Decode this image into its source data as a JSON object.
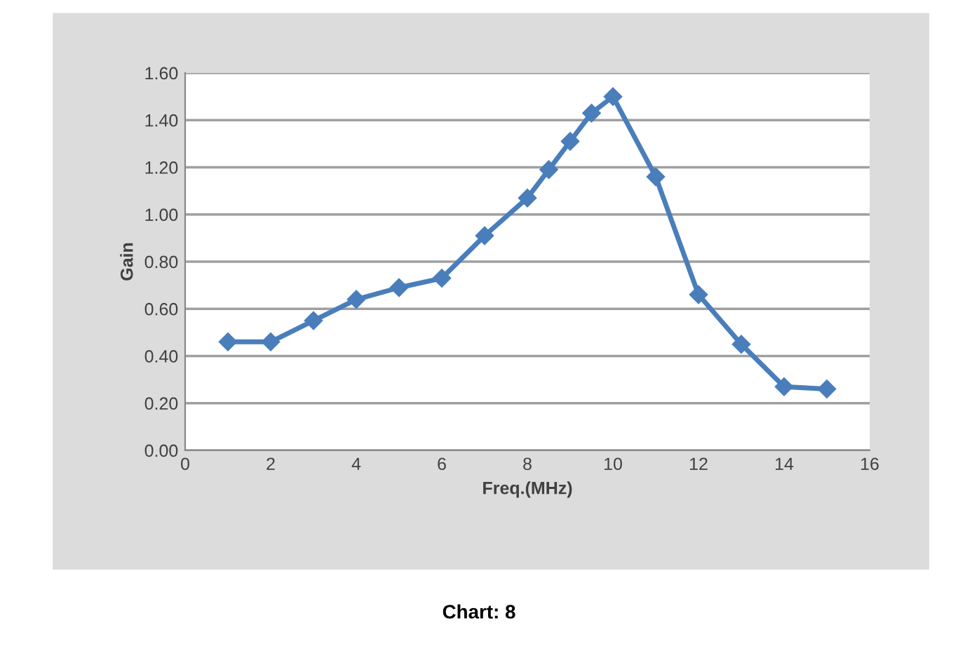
{
  "chart_data": {
    "type": "line",
    "xlabel": "Freq.(MHz)",
    "ylabel": "Gain",
    "annotations": [
      "Chart: 8"
    ],
    "x": [
      1,
      2,
      3,
      4,
      5,
      6,
      7,
      8,
      8.5,
      9,
      9.5,
      10,
      11,
      12,
      13,
      14,
      15
    ],
    "series": [
      {
        "color": "#4a7ebb",
        "values": [
          0.46,
          0.46,
          0.55,
          0.64,
          0.69,
          0.73,
          0.91,
          1.07,
          1.19,
          1.31,
          1.43,
          1.5,
          1.16,
          0.66,
          0.45,
          0.27,
          0.26
        ]
      }
    ],
    "xlim": [
      0,
      16
    ],
    "xticks": [
      0,
      2,
      4,
      6,
      8,
      10,
      12,
      14,
      16
    ],
    "ylim": [
      0,
      1.6
    ],
    "yticks": [
      {
        "value": 0,
        "label": "0.00"
      },
      {
        "value": 0.2,
        "label": "0.20"
      },
      {
        "value": 0.4,
        "label": "0.40"
      },
      {
        "value": 0.6,
        "label": "0.60"
      },
      {
        "value": 0.8,
        "label": "0.80"
      },
      {
        "value": 1.0,
        "label": "1.00"
      },
      {
        "value": 1.2,
        "label": "1.20"
      },
      {
        "value": 1.4,
        "label": "1.40"
      },
      {
        "value": 1.6,
        "label": "1.60"
      }
    ],
    "grid": "y",
    "marker": "diamond",
    "line_style": "solid",
    "legend": false
  }
}
